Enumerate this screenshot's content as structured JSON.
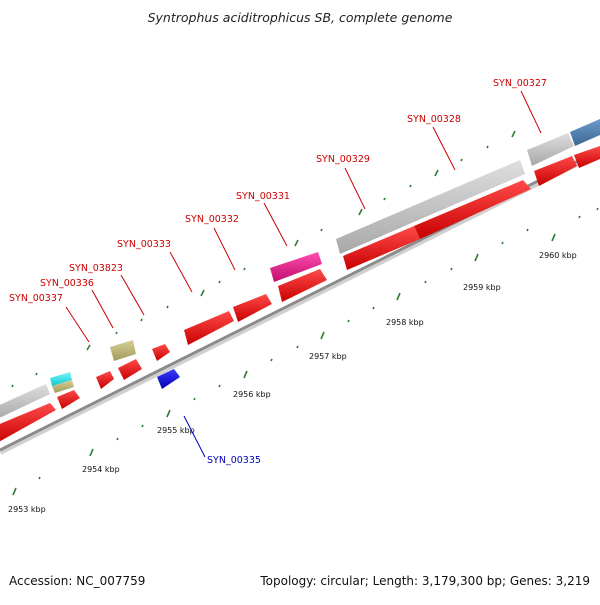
{
  "title": "Syntrophus aciditrophicus SB, complete genome",
  "accession": "Accession: NC_007759",
  "summary": "Topology: circular; Length: 3,179,300 bp; Genes: 3,219",
  "colors": {
    "backbone": "#8c8c8c",
    "tick": "#2e7d32",
    "gene_label": "#cc0000",
    "gene_label_reverse": "#0000bb",
    "cds": "#f20000",
    "cds_reverse": "#1414e6",
    "grey_feature": "#c4c4c4",
    "cyan_feature": "#22e6ee",
    "khaki_feature": "#c2b87a",
    "magenta_feature": "#ee2288",
    "steelblue_feature": "#4f7fb0"
  },
  "scale_labels": [
    {
      "text": "2953 kbp",
      "kbp": 2953
    },
    {
      "text": "2954 kbp",
      "kbp": 2954
    },
    {
      "text": "2955 kbp",
      "kbp": 2955
    },
    {
      "text": "2956 kbp",
      "kbp": 2956
    },
    {
      "text": "2957 kbp",
      "kbp": 2957
    },
    {
      "text": "2958 kbp",
      "kbp": 2958
    },
    {
      "text": "2959 kbp",
      "kbp": 2959
    },
    {
      "text": "2960 kbp",
      "kbp": 2960
    }
  ],
  "gene_labels": [
    {
      "name": "SYN_00337",
      "strand": "forward"
    },
    {
      "name": "SYN_00336",
      "strand": "forward"
    },
    {
      "name": "SYN_03823",
      "strand": "forward"
    },
    {
      "name": "SYN_00333",
      "strand": "forward"
    },
    {
      "name": "SYN_00332",
      "strand": "forward"
    },
    {
      "name": "SYN_00331",
      "strand": "forward"
    },
    {
      "name": "SYN_00329",
      "strand": "forward"
    },
    {
      "name": "SYN_00328",
      "strand": "forward"
    },
    {
      "name": "SYN_00327",
      "strand": "forward"
    },
    {
      "name": "SYN_00335",
      "strand": "reverse"
    }
  ]
}
